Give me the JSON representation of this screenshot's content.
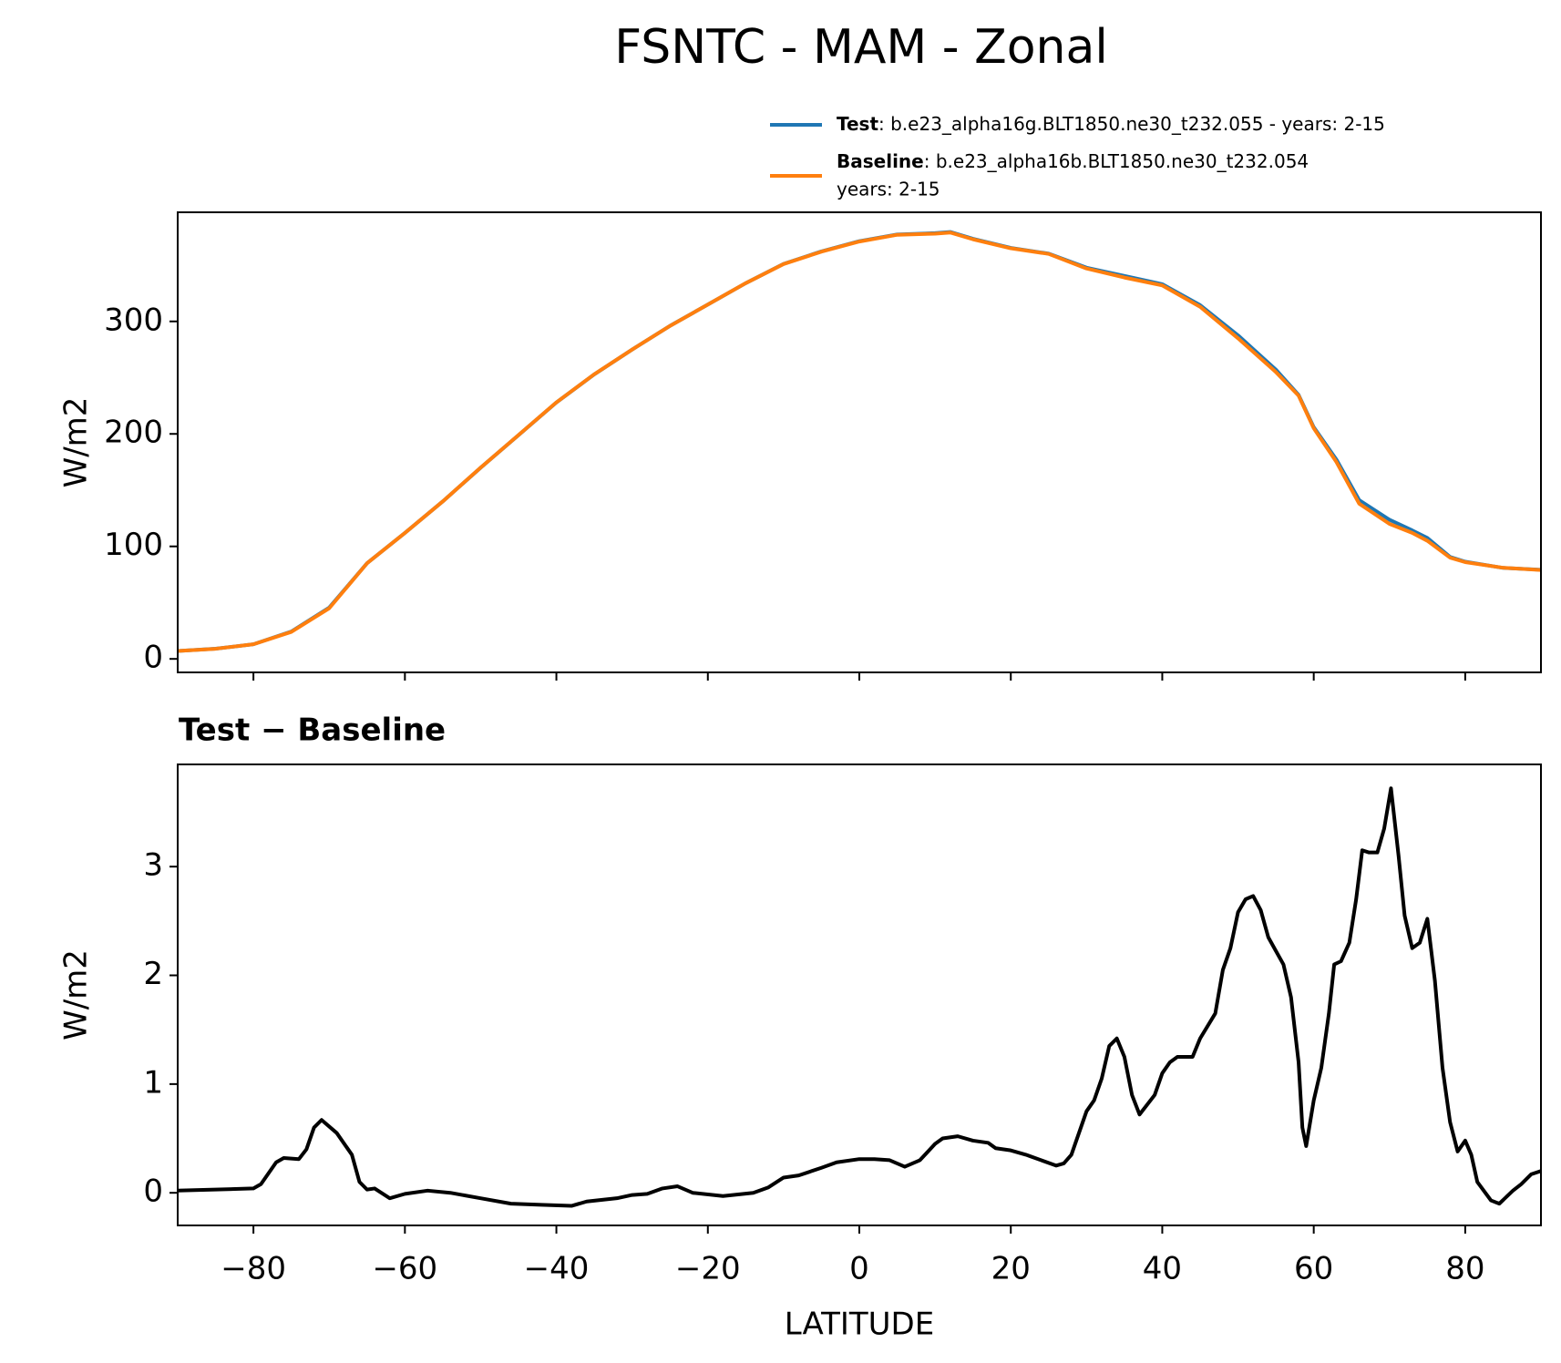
{
  "chart_data": [
    {
      "type": "line",
      "title": "FSNTC - MAM - Zonal",
      "ylabel": "W/m2",
      "xlim": [
        -90,
        90
      ],
      "ylim": [
        -12,
        397
      ],
      "xticks": [
        -80,
        -60,
        -40,
        -20,
        0,
        20,
        40,
        60,
        80
      ],
      "yticks": [
        0,
        100,
        200,
        300
      ],
      "x": [
        -90,
        -85,
        -80,
        -75,
        -70,
        -65,
        -60,
        -55,
        -50,
        -45,
        -40,
        -35,
        -30,
        -25,
        -20,
        -15,
        -10,
        -5,
        0,
        5,
        10,
        12,
        15,
        20,
        25,
        30,
        35,
        40,
        45,
        50,
        55,
        58,
        60,
        63,
        66,
        70,
        73,
        75,
        78,
        80,
        85,
        90
      ],
      "series": [
        {
          "name": "Test",
          "label": ": b.e23_alpha16g.BLT1850.ne30_t232.055 - years: 2-15",
          "color": "#1f77b4",
          "values": [
            7.02,
            9.03,
            13.03,
            24.33,
            45.55,
            85.02,
            112,
            140,
            169.95,
            198.9,
            227.9,
            252.93,
            274.98,
            296.05,
            314.97,
            333.98,
            351.14,
            362.22,
            371.31,
            377.25,
            378.45,
            379.52,
            373.48,
            365.38,
            360.25,
            347.75,
            340.4,
            333.1,
            314.45,
            287.65,
            257.1,
            234.6,
            205.9,
            177.1,
            141.15,
            123.7,
            114.25,
            107.5,
            90.65,
            86.4,
            80.9,
            79.2
          ]
        },
        {
          "name": "Baseline",
          "label_lines": [
            ": b.e23_alpha16b.BLT1850.ne30_t232.054",
            "years: 2-15"
          ],
          "color": "#ff7f0e",
          "values": [
            7,
            9,
            13,
            24,
            45,
            85,
            112,
            140,
            170,
            199,
            228,
            253,
            275,
            296,
            315,
            334,
            351,
            362,
            371,
            377,
            378,
            379,
            373,
            365,
            360,
            347,
            339,
            332,
            313,
            285,
            255,
            234,
            205,
            175,
            138,
            120,
            112,
            105,
            90,
            86,
            81,
            79
          ]
        }
      ]
    },
    {
      "type": "line",
      "title": "Test − Baseline",
      "ylabel": "W/m2",
      "xlabel": "LATITUDE",
      "xlim": [
        -90,
        90
      ],
      "ylim": [
        -0.3,
        3.94
      ],
      "xticks": [
        {
          "value": -80,
          "label": "−80"
        },
        {
          "value": -60,
          "label": "−60"
        },
        {
          "value": -40,
          "label": "−40"
        },
        {
          "value": -20,
          "label": "−20"
        },
        0,
        20,
        40,
        60,
        80
      ],
      "yticks": [
        0,
        1,
        2,
        3
      ],
      "x": [
        -90,
        -85,
        -80,
        -79,
        -77,
        -76,
        -74,
        -73,
        -72,
        -71,
        -69,
        -67,
        -66,
        -65,
        -64,
        -62,
        -60,
        -57,
        -54,
        -50,
        -46,
        -42,
        -38,
        -36,
        -32,
        -30,
        -28,
        -26,
        -24,
        -22,
        -18,
        -14,
        -12,
        -10,
        -8,
        -5,
        -3,
        0,
        2,
        4,
        6,
        8,
        10,
        11,
        13,
        15,
        17,
        18,
        20,
        22,
        24,
        26,
        27,
        28,
        30,
        31,
        32,
        33,
        34,
        35,
        36,
        37,
        39,
        40,
        41,
        42,
        44,
        45,
        47,
        48,
        49,
        50,
        51,
        52,
        53,
        54,
        56,
        57,
        58,
        58.5,
        59,
        60,
        61,
        62,
        62.7,
        63.6,
        64.7,
        65.6,
        66.4,
        67.3,
        68.4,
        69.3,
        70.2,
        71.2,
        72,
        73,
        74,
        75,
        76,
        77,
        78,
        79,
        80,
        80.8,
        81.6,
        83.4,
        84.5,
        86.3,
        87.4,
        88.7,
        90
      ],
      "series": [
        {
          "name": "Test − Baseline",
          "color": "#000000",
          "values": [
            0.02,
            0.03,
            0.04,
            0.08,
            0.28,
            0.32,
            0.31,
            0.4,
            0.6,
            0.67,
            0.55,
            0.35,
            0.1,
            0.03,
            0.04,
            -0.05,
            -0.01,
            0.02,
            0,
            -0.05,
            -0.1,
            -0.11,
            -0.12,
            -0.08,
            -0.05,
            -0.02,
            -0.01,
            0.04,
            0.06,
            0,
            -0.03,
            0,
            0.05,
            0.14,
            0.16,
            0.23,
            0.28,
            0.31,
            0.31,
            0.3,
            0.24,
            0.3,
            0.45,
            0.5,
            0.52,
            0.48,
            0.46,
            0.41,
            0.39,
            0.35,
            0.3,
            0.25,
            0.27,
            0.35,
            0.75,
            0.85,
            1.05,
            1.35,
            1.42,
            1.25,
            0.9,
            0.72,
            0.9,
            1.1,
            1.2,
            1.25,
            1.25,
            1.42,
            1.65,
            2.05,
            2.25,
            2.58,
            2.7,
            2.73,
            2.6,
            2.35,
            2.1,
            1.8,
            1.2,
            0.6,
            0.43,
            0.85,
            1.15,
            1.65,
            2.1,
            2.13,
            2.3,
            2.7,
            3.15,
            3.13,
            3.13,
            3.35,
            3.72,
            3.1,
            2.55,
            2.25,
            2.3,
            2.52,
            1.95,
            1.15,
            0.65,
            0.38,
            0.48,
            0.35,
            0.1,
            -0.07,
            -0.1,
            0.02,
            0.08,
            0.17,
            0.2
          ]
        }
      ]
    }
  ]
}
